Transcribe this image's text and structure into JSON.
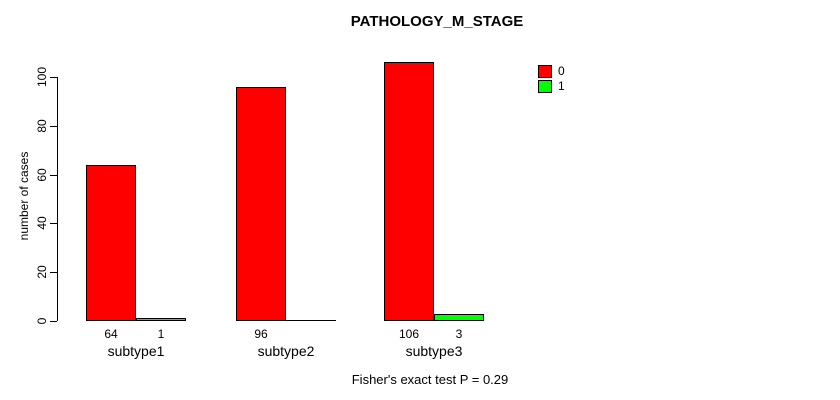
{
  "title": "PATHOLOGY_M_STAGE",
  "ylabel": "number of cases",
  "footer": "Fisher's exact test P = 0.29",
  "legend": [
    {
      "label": "0",
      "color": "#ff0000"
    },
    {
      "label": "1",
      "color": "#00ff00"
    }
  ],
  "chart_data": {
    "type": "bar",
    "title": "PATHOLOGY_M_STAGE",
    "xlabel": "",
    "ylabel": "number of cases",
    "categories": [
      "subtype1",
      "subtype2",
      "subtype3"
    ],
    "series": [
      {
        "name": "0",
        "color": "#ff0000",
        "values": [
          64,
          96,
          106
        ]
      },
      {
        "name": "1",
        "color": "#00ff00",
        "values": [
          1,
          0,
          3
        ]
      }
    ],
    "bar_labels": [
      [
        "64",
        "1"
      ],
      [
        "96",
        ""
      ],
      [
        "106",
        "3"
      ]
    ],
    "yticks": [
      0,
      20,
      40,
      60,
      80,
      100
    ],
    "ylim": [
      0,
      110
    ],
    "grid": false,
    "legend_position": "top-right",
    "annotation": "Fisher's exact test P = 0.29"
  }
}
